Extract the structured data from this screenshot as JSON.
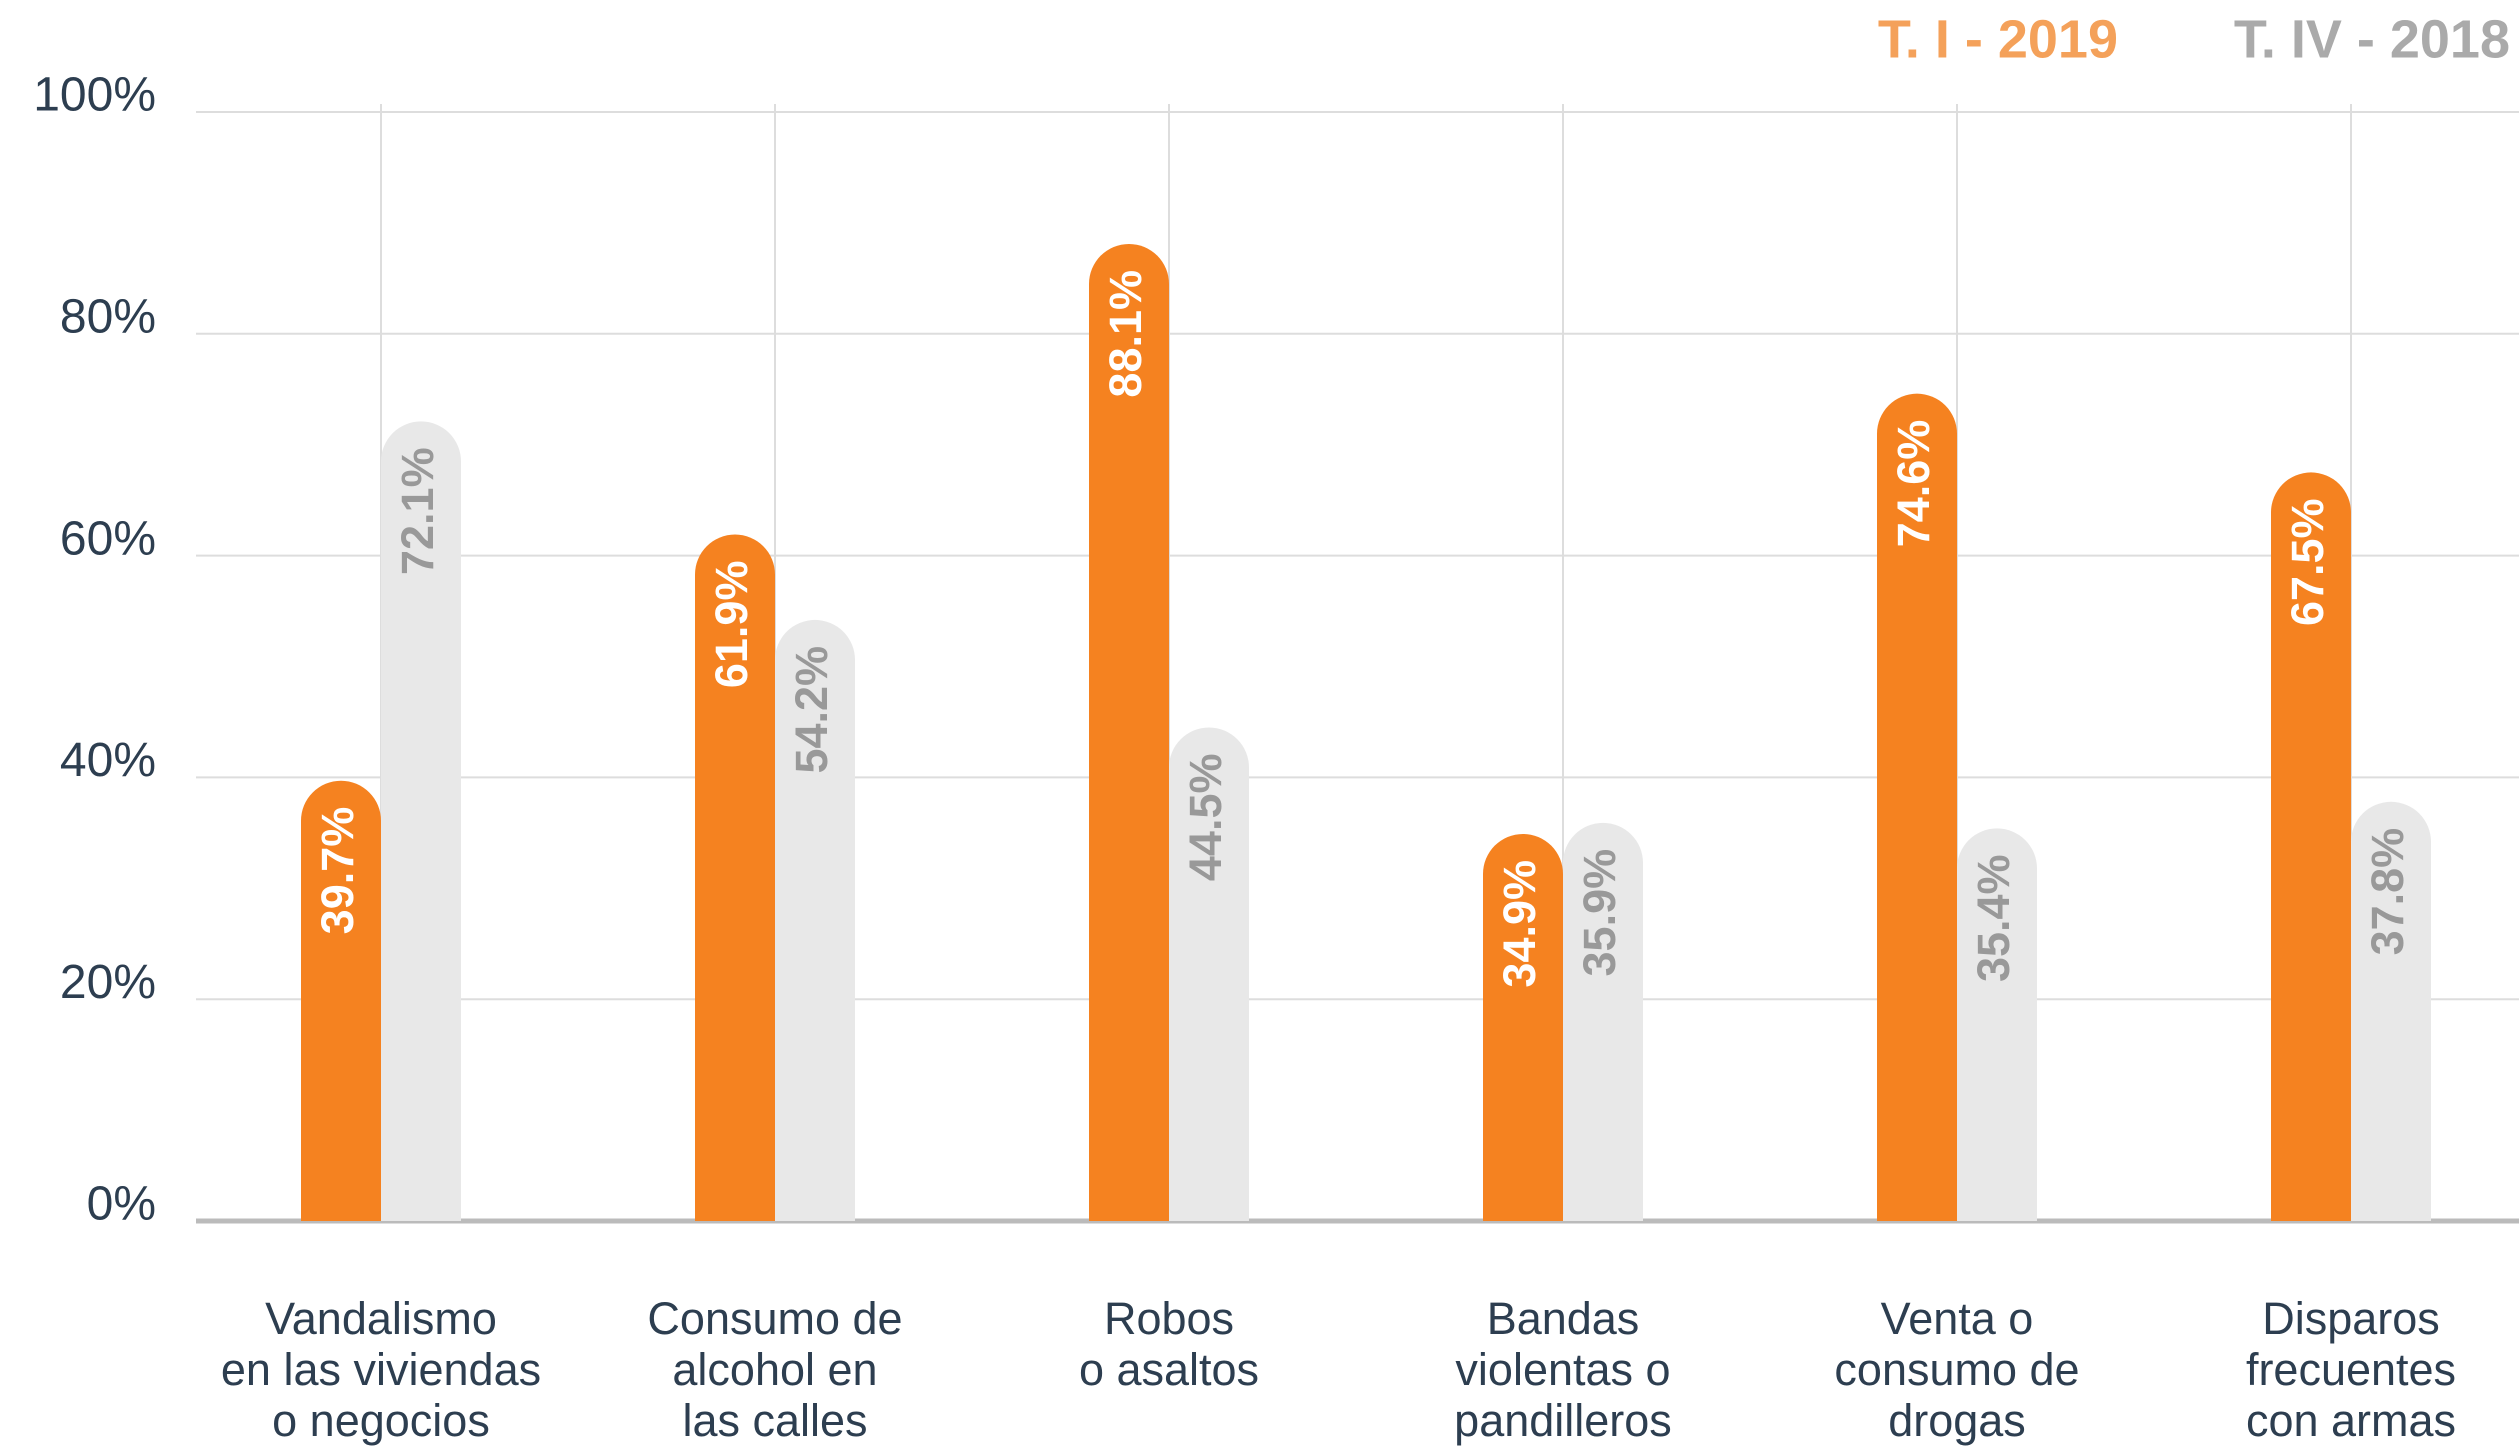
{
  "chart_data": {
    "type": "bar",
    "categories": [
      [
        "Vandalismo",
        "en las viviendas",
        "o negocios"
      ],
      [
        "Consumo de",
        "alcohol en",
        "las calles"
      ],
      [
        "Robos",
        "o asaltos"
      ],
      [
        "Bandas",
        "violentas o",
        "pandilleros"
      ],
      [
        "Venta o",
        "consumo de",
        "drogas"
      ],
      [
        "Disparos",
        "frecuentes",
        "con armas"
      ]
    ],
    "series": [
      {
        "name": "T. I - 2019",
        "color": "#f58220",
        "label_color": "#ffffff",
        "values": [
          39.7,
          61.9,
          88.1,
          34.9,
          74.6,
          67.5
        ],
        "value_labels": [
          "39.7%",
          "61.9%",
          "88.1%",
          "34.9%",
          "74.6%",
          "67.5%"
        ]
      },
      {
        "name": "T. IV - 2018",
        "color": "#e8e8e8",
        "label_color": "#999999",
        "values": [
          72.1,
          54.2,
          44.5,
          35.9,
          35.4,
          37.8
        ],
        "value_labels": [
          "72.1%",
          "54.2%",
          "44.5%",
          "35.9%",
          "35.4%",
          "37.8%"
        ]
      }
    ],
    "ylim": [
      0,
      100
    ],
    "yticks": [
      {
        "value": 0,
        "label": "0%"
      },
      {
        "value": 20,
        "label": "20%"
      },
      {
        "value": 40,
        "label": "40%"
      },
      {
        "value": 60,
        "label": "60%"
      },
      {
        "value": 80,
        "label": "80%"
      },
      {
        "value": 100,
        "label": "100%"
      }
    ],
    "grid": true,
    "legend": "top-right"
  }
}
